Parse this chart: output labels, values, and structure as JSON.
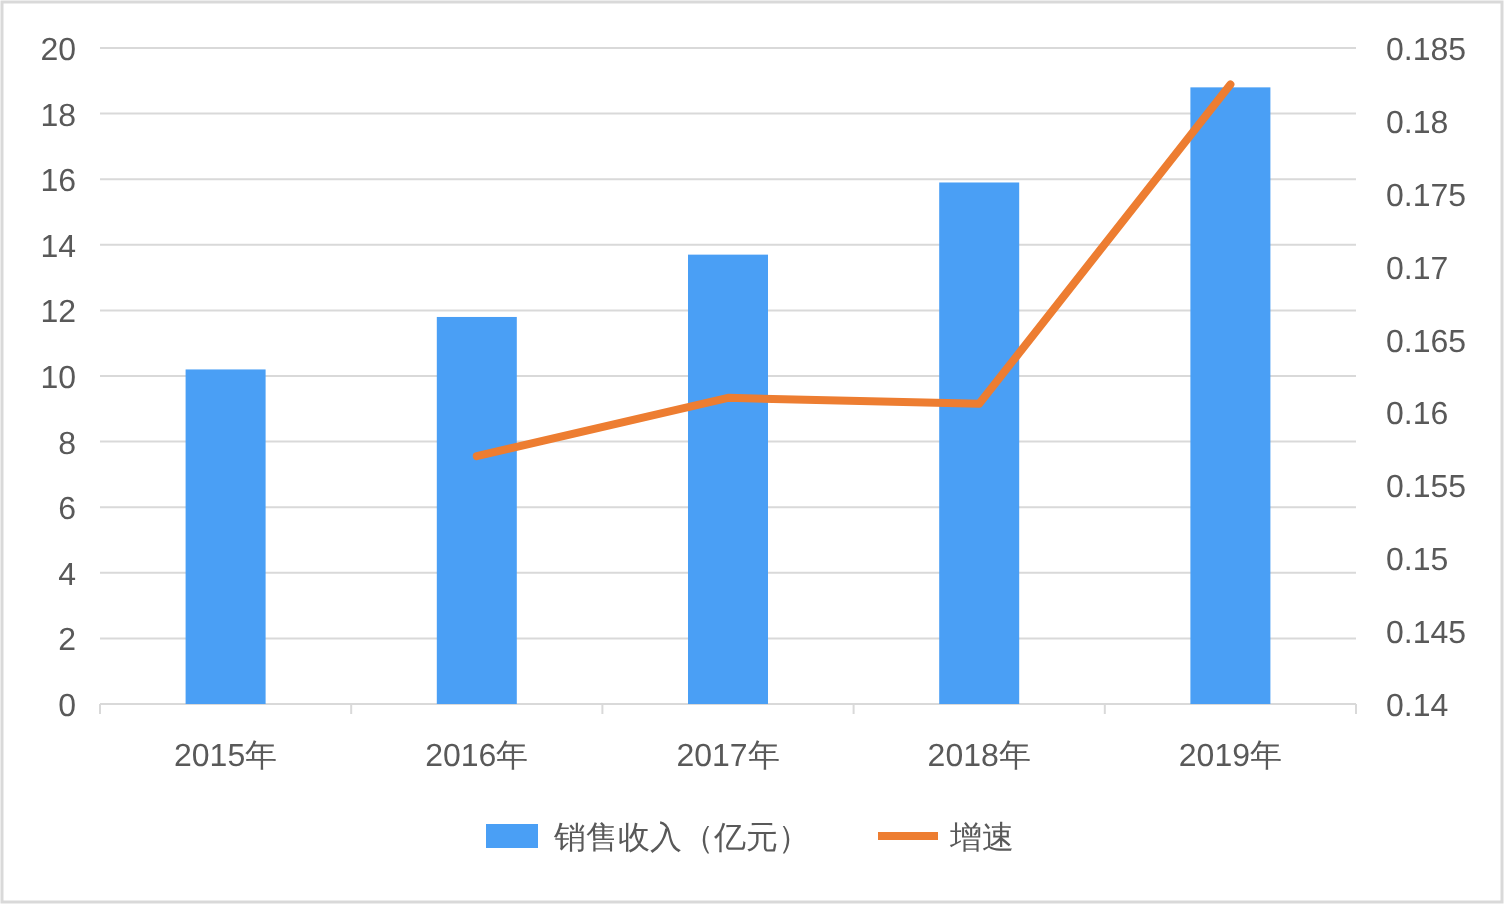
{
  "chart_data": {
    "type": "bar",
    "categories": [
      "2015年",
      "2016年",
      "2017年",
      "2018年",
      "2019年"
    ],
    "series": [
      {
        "name": "销售收入（亿元）",
        "color": "#4a9ff5",
        "values": [
          10.2,
          11.8,
          13.7,
          15.9,
          18.8
        ]
      },
      {
        "name": "增速",
        "type": "line",
        "axis": "y2",
        "color": "#ed7d31",
        "values": [
          null,
          0.157,
          0.161,
          0.1606,
          0.1825
        ]
      }
    ],
    "ylim": [
      0,
      20
    ],
    "yticks": [
      0,
      2,
      4,
      6,
      8,
      10,
      12,
      14,
      16,
      18,
      20
    ],
    "y2lim": [
      0.14,
      0.185
    ],
    "y2ticks": [
      0.14,
      0.145,
      0.15,
      0.155,
      0.16,
      0.165,
      0.17,
      0.175,
      0.18,
      0.185
    ],
    "grid": "y",
    "legend": "bottom",
    "marker": "none",
    "line_style": "solid"
  }
}
